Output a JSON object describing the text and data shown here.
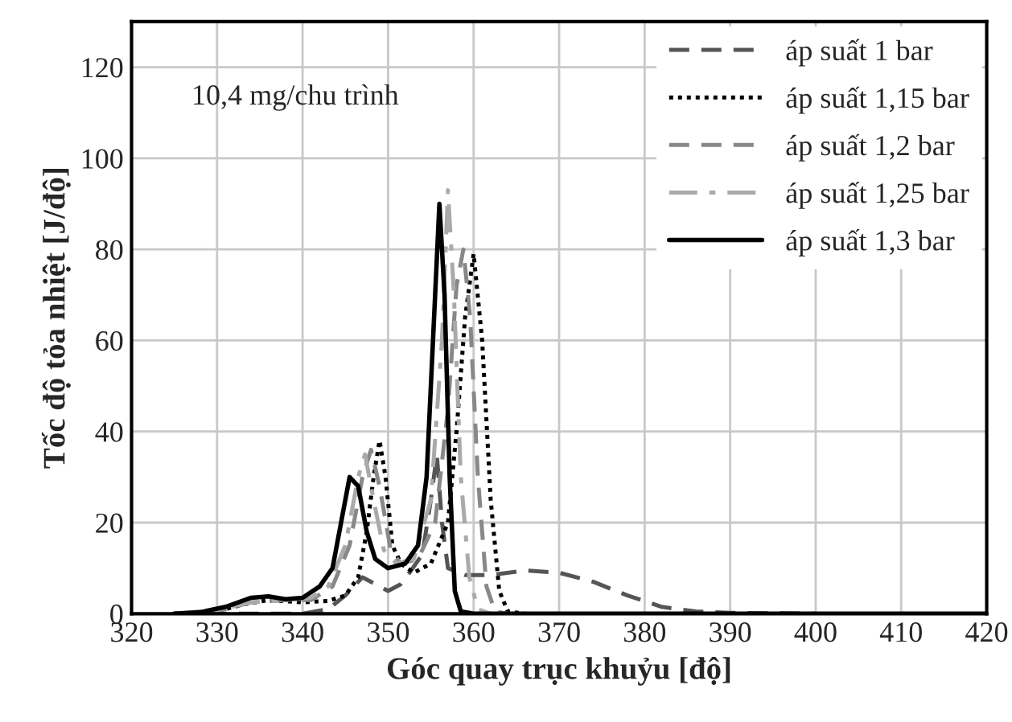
{
  "chart_data": {
    "type": "line",
    "xlabel": "Góc quay trục khuỷu [độ]",
    "ylabel": "Tốc độ tỏa nhiệt [J/độ]",
    "annotations": [
      "10,4 mg/chu trình"
    ],
    "xlim": [
      320,
      420
    ],
    "xticks": [
      320,
      330,
      340,
      350,
      360,
      370,
      380,
      390,
      400,
      410,
      420
    ],
    "ylim": [
      0,
      130
    ],
    "yticks": [
      0,
      20,
      40,
      60,
      80,
      100,
      120
    ],
    "grid": true,
    "legend": "top right",
    "marker": "none",
    "series": [
      {
        "name": "áp suất 1 bar",
        "color": "#555555",
        "line_style": "dashed",
        "x": [
          325,
          340,
          343,
          345,
          347,
          348.5,
          350,
          351.5,
          352.5,
          354,
          355,
          355.7,
          356.3,
          357,
          359,
          362,
          366,
          370,
          374,
          378,
          382,
          386,
          390,
          400
        ],
        "values": [
          0,
          0,
          1,
          4,
          8,
          6.5,
          5,
          6.5,
          9,
          13,
          25,
          35,
          20,
          10,
          8.5,
          8.5,
          9.5,
          9,
          7,
          4,
          1.5,
          0.5,
          0.2,
          0
        ]
      },
      {
        "name": "áp suất 1,15 bar",
        "color": "#000000",
        "line_style": "dotted",
        "x": [
          325,
          330,
          333,
          336,
          340,
          343,
          345,
          346.5,
          347.5,
          348.3,
          349,
          349.7,
          350.5,
          351.5,
          353,
          355,
          357,
          358,
          359,
          360,
          361,
          362,
          363,
          364,
          366
        ],
        "values": [
          0,
          0.5,
          2,
          3,
          2.5,
          2.8,
          4,
          8,
          18,
          30,
          38,
          30,
          15,
          11,
          9,
          11,
          20,
          40,
          65,
          79,
          60,
          25,
          5,
          0.5,
          0
        ]
      },
      {
        "name": "áp suất 1,2 bar",
        "color": "#888888",
        "line_style": "dashed",
        "x": [
          325,
          330,
          334,
          338,
          341,
          343.5,
          345.5,
          347,
          348,
          349,
          350.3,
          351.5,
          353.5,
          355.5,
          357,
          358,
          358.8,
          359.6,
          360.5,
          361.5,
          362.5,
          364
        ],
        "values": [
          0,
          0.5,
          2.5,
          3,
          3,
          6,
          15,
          30,
          36,
          28,
          14,
          11,
          12,
          20,
          45,
          72,
          80,
          65,
          30,
          6,
          0.5,
          0
        ]
      },
      {
        "name": "áp suất 1,25 bar",
        "color": "#aaaaaa",
        "line_style": "dashdot",
        "x": [
          325,
          330,
          334,
          338,
          341,
          343,
          345,
          346.5,
          347.3,
          348.3,
          349.5,
          351,
          353,
          355,
          356.3,
          357,
          357.7,
          358.5,
          359.5,
          360.5,
          362
        ],
        "values": [
          0,
          0.8,
          2.5,
          3,
          3.5,
          6,
          15,
          30,
          35,
          25,
          14,
          11,
          12,
          25,
          60,
          93,
          70,
          30,
          8,
          1,
          0
        ]
      },
      {
        "name": "áp suất 1,3 bar",
        "color": "#000000",
        "line_style": "solid",
        "x": [
          325,
          328,
          331,
          334,
          336,
          338,
          340,
          342,
          343.5,
          344.5,
          345.5,
          346.5,
          347.5,
          348.5,
          350,
          352,
          353.5,
          354.5,
          355.5,
          356,
          356.6,
          357.2,
          357.8,
          358.5,
          360,
          420
        ],
        "values": [
          0,
          0.3,
          1.5,
          3.5,
          3.8,
          3.2,
          3.5,
          6,
          10,
          20,
          30,
          28,
          18,
          12,
          10,
          11,
          15,
          30,
          70,
          90,
          70,
          30,
          5,
          0.5,
          0,
          0
        ]
      }
    ]
  }
}
